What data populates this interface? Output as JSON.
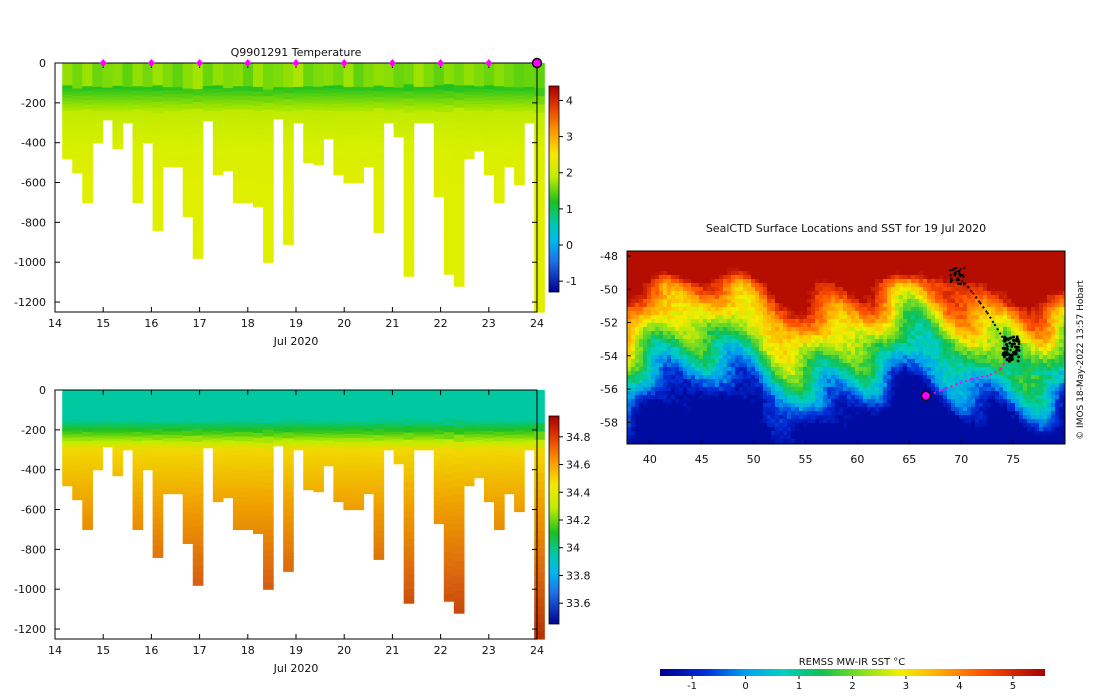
{
  "chart_data": [
    {
      "type": "heatmap",
      "title": "Q9901291  Temperature",
      "xlabel": "Jul 2020",
      "ylabel": "",
      "x_ticks": [
        14,
        15,
        16,
        17,
        18,
        19,
        20,
        21,
        22,
        23,
        24
      ],
      "y_ticks": [
        0,
        -200,
        -400,
        -600,
        -800,
        -1000,
        -1200
      ],
      "xlim": [
        14,
        24
      ],
      "ylim": [
        -1250,
        0
      ],
      "colorbar": {
        "ticks": [
          4,
          3,
          2,
          1,
          0,
          -1
        ],
        "range": [
          -1.3,
          4.4
        ]
      },
      "profile_markers_x": [
        15,
        16,
        17,
        18,
        19,
        20,
        21,
        22,
        23
      ],
      "current_marker_x": 24,
      "profiles": {
        "start": 14.2,
        "width": 0.2,
        "depth": [
          480,
          550,
          700,
          400,
          285,
          430,
          300,
          700,
          400,
          840,
          520,
          520,
          770,
          980,
          290,
          560,
          540,
          700,
          700,
          720,
          1000,
          280,
          910,
          300,
          500,
          510,
          380,
          560,
          600,
          600,
          520,
          850,
          300,
          370,
          1070,
          300,
          300,
          670,
          1060,
          1120,
          480,
          440,
          560,
          700,
          520,
          610,
          300,
          1250
        ],
        "values": [
          2.1,
          1.8,
          2.2,
          1.7,
          1.9,
          2.0,
          1.6,
          2.1,
          1.8,
          2.2,
          1.9,
          1.6,
          2.0,
          2.3,
          1.7,
          2.1,
          1.9,
          2.0,
          1.6,
          2.2,
          1.8,
          1.9,
          2.1,
          2.4,
          1.7,
          1.9,
          2.0,
          1.8,
          2.2,
          1.6,
          1.9,
          2.1,
          2.0,
          1.7,
          1.8,
          2.2,
          1.9,
          1.6,
          2.0,
          1.8,
          2.1,
          1.9,
          1.7,
          2.0,
          1.8,
          1.6,
          1.7,
          1.6
        ]
      }
    },
    {
      "type": "heatmap",
      "title": "",
      "xlabel": "Jul 2020",
      "ylabel": "",
      "x_ticks": [
        14,
        15,
        16,
        17,
        18,
        19,
        20,
        21,
        22,
        23,
        24
      ],
      "y_ticks": [
        0,
        -200,
        -400,
        -600,
        -800,
        -1000,
        -1200
      ],
      "xlim": [
        14,
        24
      ],
      "ylim": [
        -1250,
        0
      ],
      "colorbar": {
        "ticks": [
          34.8,
          34.6,
          34.4,
          34.2,
          34,
          33.8,
          33.6
        ],
        "labels": [
          "34.8",
          "34.6",
          "34.4",
          "34.2",
          "34",
          "33.8",
          "33.6"
        ],
        "range": [
          33.45,
          34.95
        ]
      }
    },
    {
      "type": "heatmap",
      "title": "SealCTD Surface Locations and SST for 19 Jul 2020",
      "xlabel": "",
      "ylabel": "",
      "x_ticks": [
        40,
        45,
        50,
        55,
        60,
        65,
        70,
        75
      ],
      "y_ticks": [
        -48,
        -50,
        -52,
        -54,
        -56,
        -58
      ],
      "xlim": [
        37.8,
        80
      ],
      "ylim": [
        -59.3,
        -47.7
      ],
      "colorbar": {
        "label": "REMSS MW-IR SST °C",
        "ticks": [
          -1,
          0,
          1,
          2,
          3,
          4,
          5
        ],
        "range": [
          -1.6,
          5.6
        ]
      },
      "track": [
        [
          69.1,
          -48.8
        ],
        [
          69.6,
          -49.3
        ],
        [
          70.3,
          -49.6
        ],
        [
          71.1,
          -50.2
        ],
        [
          71.8,
          -50.8
        ],
        [
          72.5,
          -51.4
        ],
        [
          73.2,
          -52.1
        ],
        [
          73.9,
          -52.8
        ],
        [
          74.4,
          -53.4
        ],
        [
          74.8,
          -53.6
        ],
        [
          74.4,
          -54.2
        ],
        [
          73.8,
          -54.8
        ],
        [
          72.6,
          -55.2
        ],
        [
          71.0,
          -55.4
        ],
        [
          69.6,
          -55.7
        ],
        [
          68.0,
          -56.1
        ],
        [
          66.6,
          -56.4
        ]
      ],
      "track_start": [
        66.6,
        -56.4
      ],
      "credit": "© IMOS 18-May-2022 13:57 Hobart"
    }
  ]
}
